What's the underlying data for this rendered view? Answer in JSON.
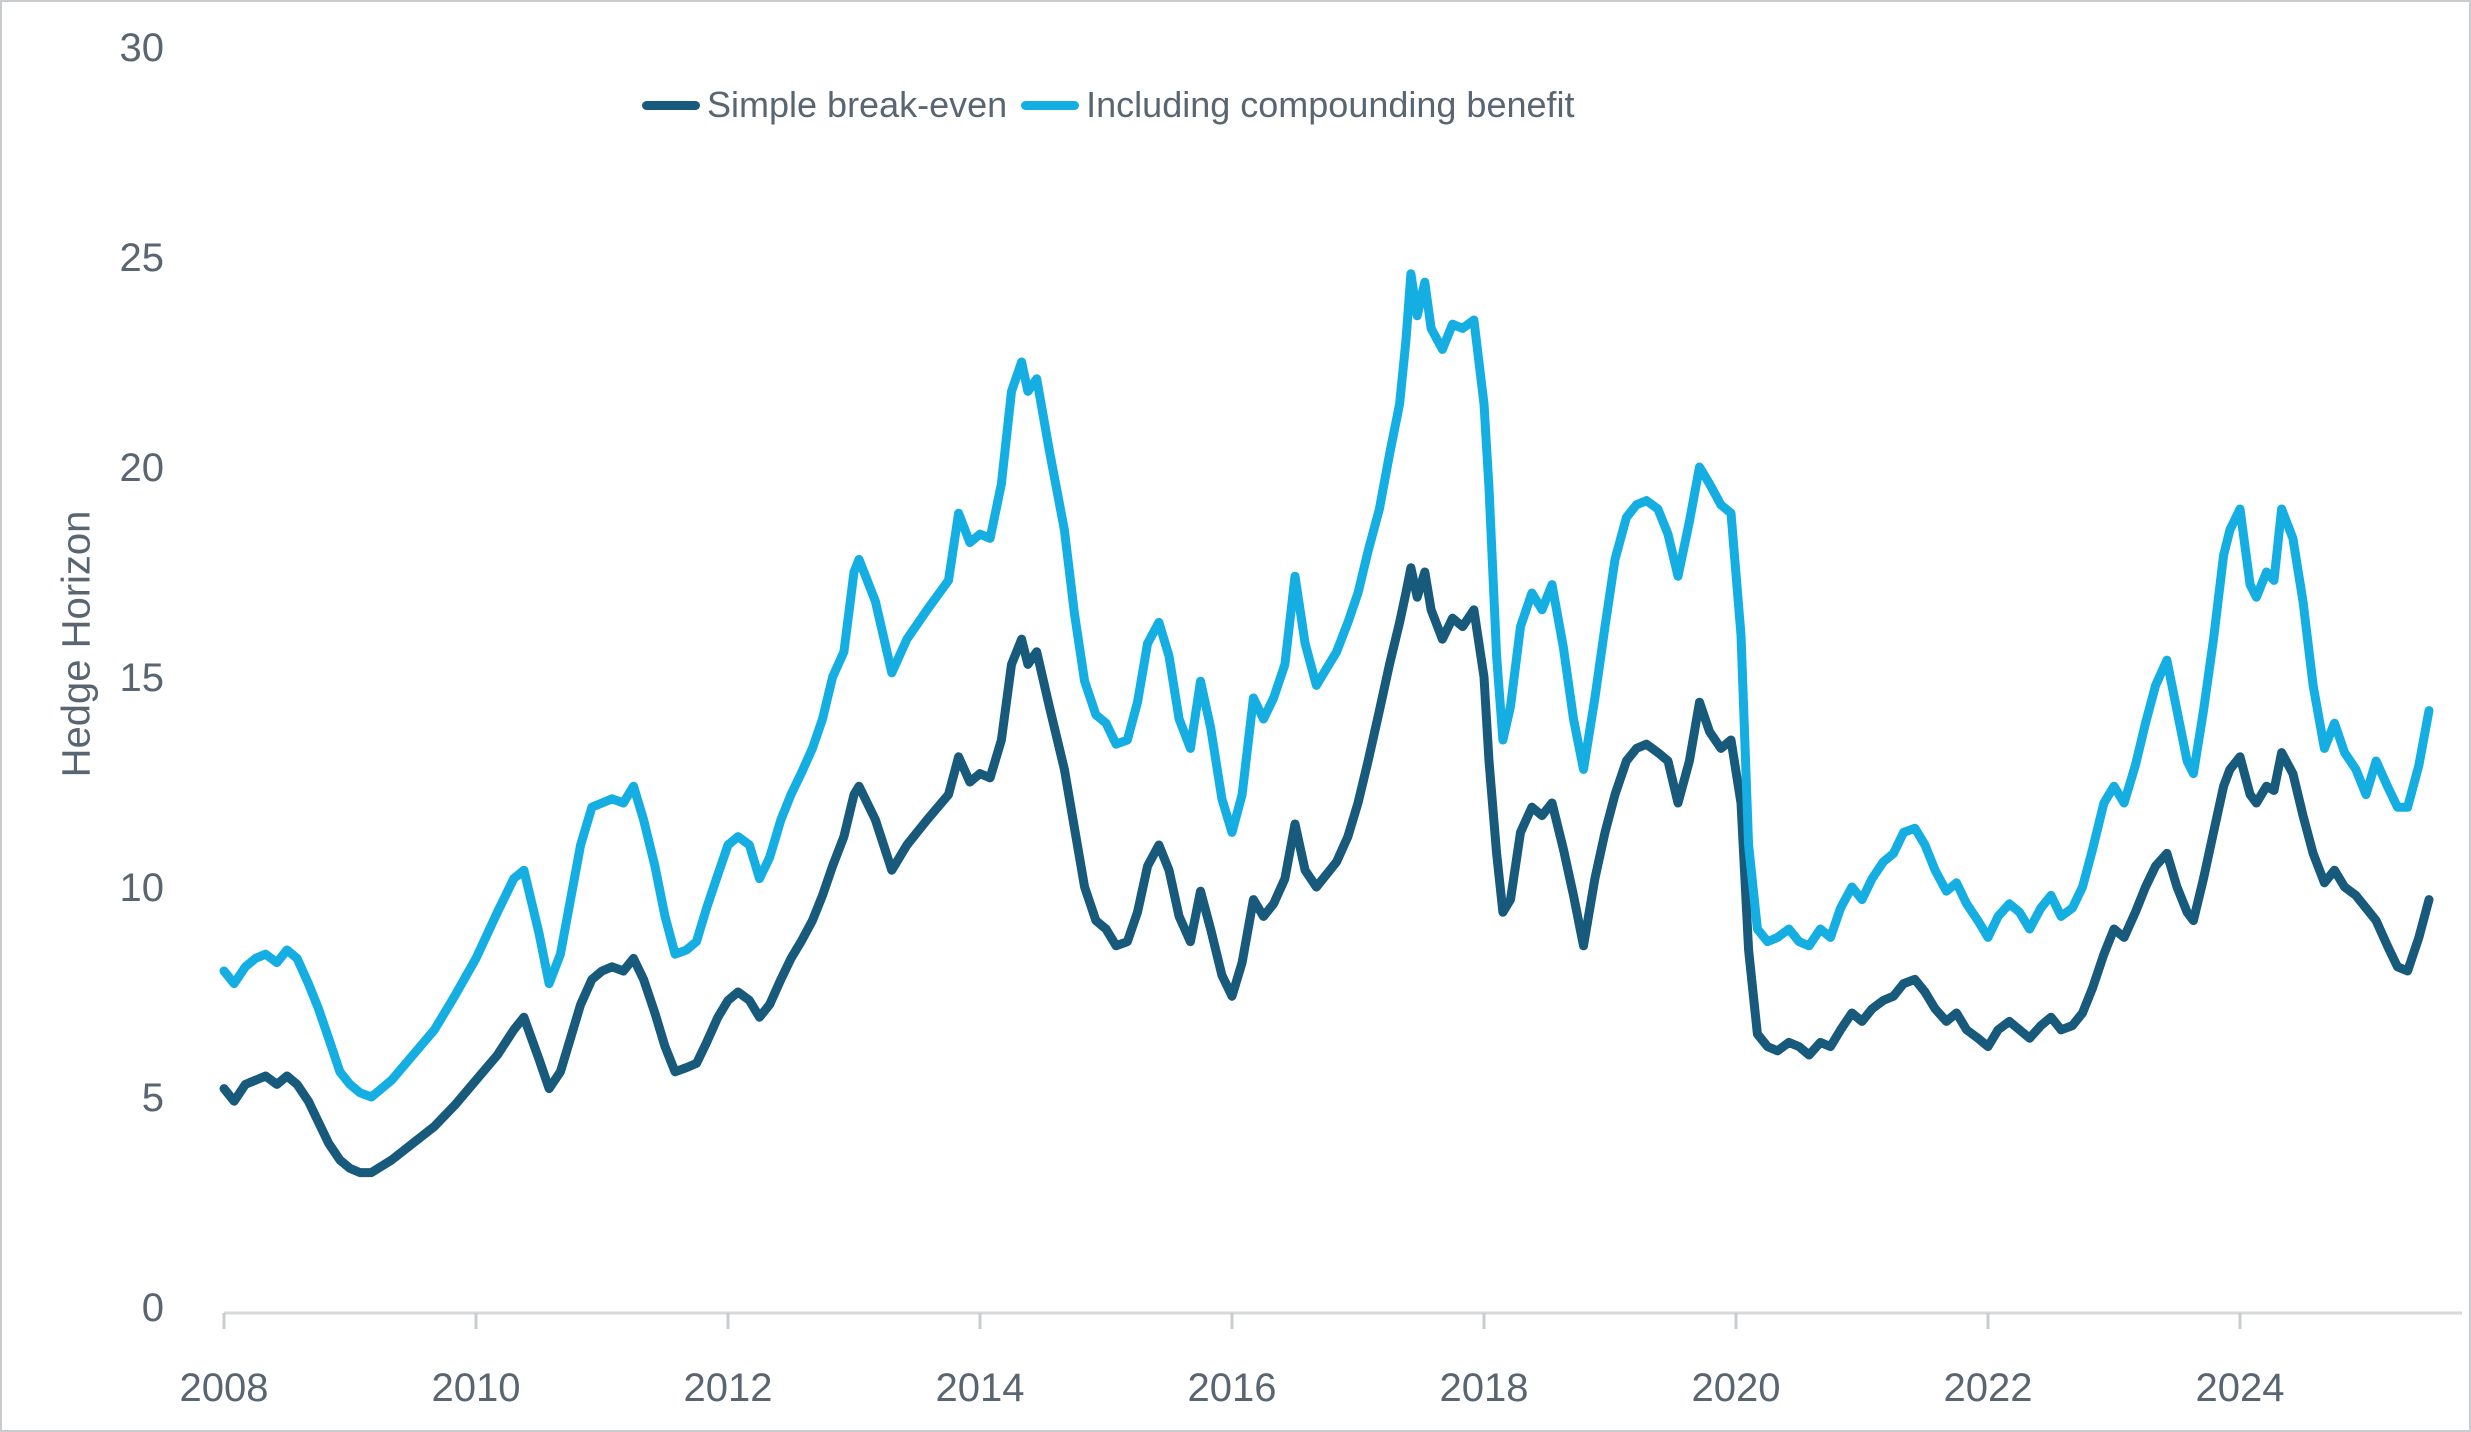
{
  "colors": {
    "series_dark": "#175A7B",
    "series_cyan": "#14AEE2",
    "axis": "#d6d8da",
    "tick_mark": "#c9cccf",
    "text": "#5a6572",
    "background": "#ffffff"
  },
  "chart_data": {
    "type": "line",
    "title": "",
    "xlabel": "",
    "ylabel": "Hedge Horizon",
    "ylim": [
      0,
      30
    ],
    "xlim": [
      2008,
      2025.9
    ],
    "grid": "off",
    "legend_position": "top-center",
    "y_ticks": [
      0,
      5,
      10,
      15,
      20,
      25,
      30
    ],
    "x_ticks": [
      2008,
      2010,
      2012,
      2014,
      2016,
      2018,
      2020,
      2022,
      2024
    ],
    "x": [
      2008.0,
      2008.08,
      2008.17,
      2008.25,
      2008.33,
      2008.42,
      2008.5,
      2008.58,
      2008.67,
      2008.75,
      2008.83,
      2008.92,
      2009.0,
      2009.08,
      2009.17,
      2009.33,
      2009.5,
      2009.67,
      2009.83,
      2010.0,
      2010.17,
      2010.3,
      2010.38,
      2010.5,
      2010.58,
      2010.67,
      2010.75,
      2010.83,
      2010.92,
      2011.0,
      2011.08,
      2011.17,
      2011.25,
      2011.33,
      2011.42,
      2011.5,
      2011.58,
      2011.67,
      2011.75,
      2011.83,
      2011.92,
      2012.0,
      2012.08,
      2012.17,
      2012.25,
      2012.33,
      2012.42,
      2012.5,
      2012.58,
      2012.67,
      2012.75,
      2012.83,
      2012.92,
      2013.0,
      2013.04,
      2013.17,
      2013.3,
      2013.42,
      2013.58,
      2013.75,
      2013.83,
      2013.92,
      2014.0,
      2014.08,
      2014.17,
      2014.25,
      2014.33,
      2014.38,
      2014.45,
      2014.55,
      2014.67,
      2014.75,
      2014.83,
      2014.92,
      2015.0,
      2015.08,
      2015.17,
      2015.25,
      2015.33,
      2015.42,
      2015.5,
      2015.58,
      2015.67,
      2015.75,
      2015.83,
      2015.92,
      2016.0,
      2016.08,
      2016.17,
      2016.25,
      2016.33,
      2016.42,
      2016.5,
      2016.58,
      2016.67,
      2016.75,
      2016.83,
      2016.92,
      2017.0,
      2017.08,
      2017.17,
      2017.25,
      2017.33,
      2017.38,
      2017.42,
      2017.47,
      2017.53,
      2017.58,
      2017.67,
      2017.75,
      2017.83,
      2017.92,
      2018.0,
      2018.04,
      2018.1,
      2018.15,
      2018.21,
      2018.29,
      2018.38,
      2018.46,
      2018.54,
      2018.63,
      2018.71,
      2018.79,
      2018.88,
      2018.96,
      2019.04,
      2019.13,
      2019.21,
      2019.29,
      2019.38,
      2019.46,
      2019.54,
      2019.63,
      2019.71,
      2019.79,
      2019.88,
      2019.96,
      2020.04,
      2020.1,
      2020.17,
      2020.25,
      2020.33,
      2020.42,
      2020.5,
      2020.58,
      2020.67,
      2020.75,
      2020.83,
      2020.92,
      2021.0,
      2021.08,
      2021.17,
      2021.25,
      2021.33,
      2021.42,
      2021.5,
      2021.58,
      2021.67,
      2021.75,
      2021.83,
      2021.92,
      2022.0,
      2022.08,
      2022.17,
      2022.25,
      2022.33,
      2022.42,
      2022.5,
      2022.58,
      2022.67,
      2022.75,
      2022.83,
      2022.92,
      2023.0,
      2023.08,
      2023.17,
      2023.25,
      2023.33,
      2023.42,
      2023.5,
      2023.58,
      2023.63,
      2023.71,
      2023.79,
      2023.87,
      2023.92,
      2024.0,
      2024.08,
      2024.13,
      2024.21,
      2024.27,
      2024.33,
      2024.42,
      2024.5,
      2024.58,
      2024.67,
      2024.75,
      2024.83,
      2024.92,
      2025.0,
      2025.08,
      2025.17,
      2025.25,
      2025.33,
      2025.42,
      2025.5
    ],
    "series": [
      {
        "id": "simple-break-even",
        "name": "Simple break-even",
        "color": "#175A7B",
        "values": [
          5.2,
          4.9,
          5.3,
          5.4,
          5.5,
          5.3,
          5.5,
          5.3,
          4.9,
          4.4,
          3.9,
          3.5,
          3.3,
          3.2,
          3.2,
          3.5,
          3.9,
          4.3,
          4.8,
          5.4,
          6.0,
          6.6,
          6.9,
          5.9,
          5.2,
          5.6,
          6.4,
          7.2,
          7.8,
          8.0,
          8.1,
          8.0,
          8.3,
          7.8,
          7.0,
          6.2,
          5.6,
          5.7,
          5.8,
          6.3,
          6.9,
          7.3,
          7.5,
          7.3,
          6.9,
          7.2,
          7.8,
          8.3,
          8.7,
          9.2,
          9.8,
          10.5,
          11.2,
          12.2,
          12.4,
          11.6,
          10.4,
          11.0,
          11.6,
          12.2,
          13.1,
          12.5,
          12.7,
          12.6,
          13.5,
          15.3,
          15.9,
          15.3,
          15.6,
          14.3,
          12.8,
          11.4,
          10.0,
          9.2,
          9.0,
          8.6,
          8.7,
          9.4,
          10.5,
          11.0,
          10.4,
          9.3,
          8.7,
          9.9,
          9.0,
          7.9,
          7.4,
          8.2,
          9.7,
          9.3,
          9.6,
          10.2,
          11.5,
          10.4,
          10.0,
          10.3,
          10.6,
          11.2,
          12.0,
          13.0,
          14.2,
          15.3,
          16.3,
          17.0,
          17.6,
          16.9,
          17.5,
          16.6,
          15.9,
          16.4,
          16.2,
          16.6,
          15.0,
          13.0,
          10.8,
          9.4,
          9.7,
          11.3,
          11.9,
          11.7,
          12.0,
          10.9,
          9.8,
          8.6,
          10.2,
          11.3,
          12.2,
          13.0,
          13.3,
          13.4,
          13.2,
          13.0,
          12.0,
          13.0,
          14.4,
          13.7,
          13.3,
          13.5,
          12.0,
          8.5,
          6.5,
          6.2,
          6.1,
          6.3,
          6.2,
          6.0,
          6.3,
          6.2,
          6.6,
          7.0,
          6.8,
          7.1,
          7.3,
          7.4,
          7.7,
          7.8,
          7.5,
          7.1,
          6.8,
          7.0,
          6.6,
          6.4,
          6.2,
          6.6,
          6.8,
          6.6,
          6.4,
          6.7,
          6.9,
          6.6,
          6.7,
          7.0,
          7.6,
          8.4,
          9.0,
          8.8,
          9.4,
          10.0,
          10.5,
          10.8,
          10.0,
          9.4,
          9.2,
          10.2,
          11.3,
          12.4,
          12.8,
          13.1,
          12.2,
          12.0,
          12.4,
          12.3,
          13.2,
          12.7,
          11.7,
          10.8,
          10.1,
          10.4,
          10.0,
          9.8,
          9.5,
          9.2,
          8.6,
          8.1,
          8.0,
          8.8,
          9.7
        ]
      },
      {
        "id": "including-compounding-benefit",
        "name": "Including compounding benefit",
        "color": "#14AEE2",
        "values": [
          8.0,
          7.7,
          8.1,
          8.3,
          8.4,
          8.2,
          8.5,
          8.3,
          7.7,
          7.1,
          6.4,
          5.6,
          5.3,
          5.1,
          5.0,
          5.4,
          6.0,
          6.6,
          7.4,
          8.3,
          9.4,
          10.2,
          10.4,
          8.9,
          7.7,
          8.4,
          9.7,
          11.0,
          11.9,
          12.0,
          12.1,
          12.0,
          12.4,
          11.6,
          10.5,
          9.3,
          8.4,
          8.5,
          8.7,
          9.5,
          10.3,
          11.0,
          11.2,
          11.0,
          10.2,
          10.7,
          11.6,
          12.2,
          12.7,
          13.3,
          14.0,
          15.0,
          15.6,
          17.5,
          17.8,
          16.8,
          15.1,
          15.9,
          16.6,
          17.3,
          18.9,
          18.2,
          18.4,
          18.3,
          19.6,
          21.8,
          22.5,
          21.8,
          22.1,
          20.4,
          18.5,
          16.5,
          14.9,
          14.1,
          13.9,
          13.4,
          13.5,
          14.4,
          15.8,
          16.3,
          15.5,
          14.0,
          13.3,
          14.9,
          13.8,
          12.1,
          11.3,
          12.2,
          14.5,
          14.0,
          14.5,
          15.3,
          17.4,
          15.8,
          14.8,
          15.2,
          15.6,
          16.3,
          17.0,
          18.0,
          19.0,
          20.3,
          21.5,
          23.0,
          24.6,
          23.6,
          24.4,
          23.3,
          22.8,
          23.4,
          23.3,
          23.5,
          21.5,
          19.5,
          15.5,
          13.5,
          14.3,
          16.2,
          17.0,
          16.6,
          17.2,
          15.7,
          14.0,
          12.8,
          14.5,
          16.2,
          17.8,
          18.8,
          19.1,
          19.2,
          19.0,
          18.4,
          17.4,
          18.7,
          20.0,
          19.6,
          19.1,
          18.9,
          16.0,
          11.0,
          9.0,
          8.7,
          8.8,
          9.0,
          8.7,
          8.6,
          9.0,
          8.8,
          9.5,
          10.0,
          9.7,
          10.2,
          10.6,
          10.8,
          11.3,
          11.4,
          11.0,
          10.4,
          9.9,
          10.1,
          9.6,
          9.2,
          8.8,
          9.3,
          9.6,
          9.4,
          9.0,
          9.5,
          9.8,
          9.3,
          9.5,
          10.0,
          10.9,
          12.0,
          12.4,
          12.0,
          12.9,
          13.9,
          14.8,
          15.4,
          14.2,
          13.0,
          12.7,
          14.2,
          15.9,
          17.9,
          18.5,
          19.0,
          17.2,
          16.9,
          17.5,
          17.3,
          19.0,
          18.3,
          16.8,
          14.8,
          13.3,
          13.9,
          13.2,
          12.8,
          12.2,
          13.0,
          12.4,
          11.9,
          11.9,
          12.9,
          14.2
        ]
      }
    ]
  }
}
